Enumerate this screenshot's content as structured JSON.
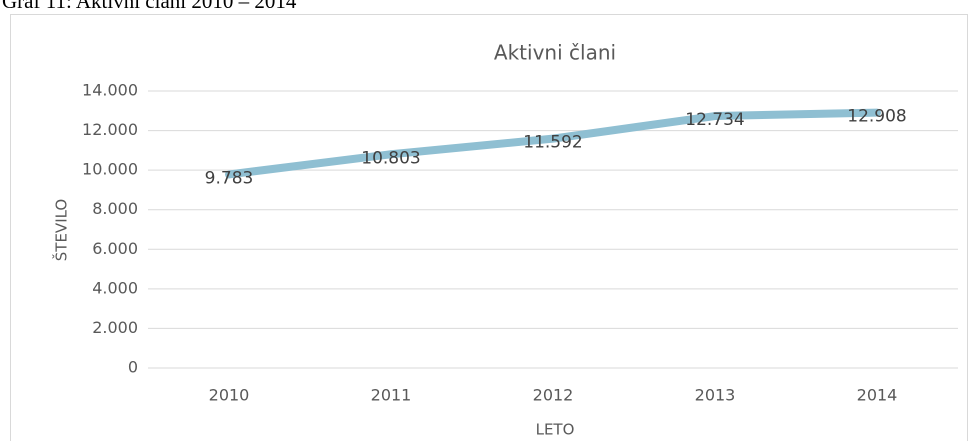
{
  "caption": "Graf 11: Aktivni člani 2010 – 2014",
  "chart_data": {
    "type": "line",
    "title": "Aktivni člani",
    "x_label": "LETO",
    "y_label": "ŠTEVILO",
    "categories": [
      "2010",
      "2011",
      "2012",
      "2013",
      "2014"
    ],
    "series": [
      {
        "name": "Aktivni člani",
        "color": "#8fbfd2",
        "values": [
          9783,
          10803,
          11592,
          12734,
          12908
        ],
        "value_labels": [
          "9.783",
          "10.803",
          "11.592",
          "12.734",
          "12.908"
        ]
      }
    ],
    "ylim": [
      0,
      14000
    ],
    "yticks": [
      0,
      {
        "value": 2000,
        "label": "2.000"
      },
      {
        "value": 4000,
        "label": "4.000"
      },
      {
        "value": 6000,
        "label": "6.000"
      },
      {
        "value": 8000,
        "label": "8.000"
      },
      {
        "value": 10000,
        "label": "10.000"
      },
      {
        "value": 12000,
        "label": "12.000"
      },
      {
        "value": 14000,
        "label": "14.000"
      }
    ],
    "grid": true,
    "legend": false
  }
}
